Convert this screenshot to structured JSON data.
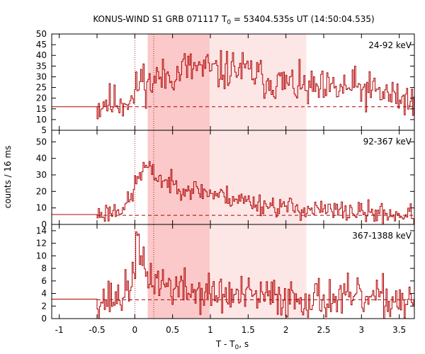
{
  "chart_data": {
    "type": "line",
    "title": "KONUS-WIND S1 GRB 071117 T",
    "title_sub": "0",
    "title_rest": " = 53404.535s UT (14:50:04.535)",
    "xlabel": "T - T",
    "xlabel_sub": "0",
    "xlabel_rest": ", s",
    "ylabel": "counts / 16 ms",
    "xlim": [
      -1.1,
      3.7
    ],
    "x_ticks": [
      -1,
      -0.5,
      0,
      0.5,
      1,
      1.5,
      2,
      2.5,
      3,
      3.5
    ],
    "x_tick_labels": [
      "-1",
      "-0.5",
      "0",
      "0.5",
      "1",
      "1.5",
      "2",
      "2.5",
      "3",
      "3.5"
    ],
    "line_color": "#b00000",
    "shade_light": "#fde6e6",
    "shade_dark": "#fbc9c9",
    "shaded_regions": [
      {
        "x0": 0.17,
        "x1": 2.27,
        "shade": "light"
      },
      {
        "x0": 0.17,
        "x1": 0.99,
        "shade": "dark"
      }
    ],
    "vertical_markers": [
      0,
      0.25
    ],
    "panels": [
      {
        "name": "24-92 keV",
        "ylim": [
          5,
          50
        ],
        "y_ticks": [
          5,
          10,
          15,
          20,
          25,
          30,
          35,
          40,
          45,
          50
        ],
        "background_level": 16,
        "pre_level": 16,
        "curve": [
          [
            -0.5,
            16
          ],
          [
            -0.45,
            17
          ],
          [
            -0.4,
            19
          ],
          [
            -0.35,
            18
          ],
          [
            -0.3,
            17
          ],
          [
            -0.25,
            19
          ],
          [
            -0.2,
            18
          ],
          [
            -0.15,
            19
          ],
          [
            -0.1,
            20
          ],
          [
            -0.05,
            18
          ],
          [
            0,
            22
          ],
          [
            0.05,
            28
          ],
          [
            0.1,
            30
          ],
          [
            0.15,
            27
          ],
          [
            0.2,
            26
          ],
          [
            0.25,
            29
          ],
          [
            0.3,
            30
          ],
          [
            0.35,
            29
          ],
          [
            0.4,
            30
          ],
          [
            0.45,
            31
          ],
          [
            0.5,
            32
          ],
          [
            0.55,
            30
          ],
          [
            0.6,
            33
          ],
          [
            0.65,
            35
          ],
          [
            0.7,
            34
          ],
          [
            0.75,
            33
          ],
          [
            0.8,
            35
          ],
          [
            0.85,
            34
          ],
          [
            0.9,
            33
          ],
          [
            0.95,
            34
          ],
          [
            1.0,
            33
          ],
          [
            1.1,
            32
          ],
          [
            1.2,
            33
          ],
          [
            1.3,
            34
          ],
          [
            1.4,
            33
          ],
          [
            1.5,
            32
          ],
          [
            1.6,
            31
          ],
          [
            1.7,
            29
          ],
          [
            1.8,
            28
          ],
          [
            1.9,
            27
          ],
          [
            2.0,
            27
          ],
          [
            2.1,
            26
          ],
          [
            2.2,
            25
          ],
          [
            2.3,
            24
          ],
          [
            2.4,
            24
          ],
          [
            2.5,
            23
          ],
          [
            2.6,
            24
          ],
          [
            2.7,
            24
          ],
          [
            2.8,
            25
          ],
          [
            2.9,
            25
          ],
          [
            3.0,
            24
          ],
          [
            3.1,
            23
          ],
          [
            3.2,
            23
          ],
          [
            3.3,
            22
          ],
          [
            3.4,
            21
          ],
          [
            3.5,
            20
          ],
          [
            3.6,
            19
          ],
          [
            3.7,
            19
          ]
        ],
        "noise": 4.5,
        "seed": 11
      },
      {
        "name": "92-367 keV",
        "ylim": [
          0,
          57
        ],
        "y_ticks": [
          0,
          10,
          20,
          30,
          40,
          50
        ],
        "background_level": 5.5,
        "pre_level": 6,
        "curve": [
          [
            -0.5,
            6
          ],
          [
            -0.4,
            7
          ],
          [
            -0.3,
            8
          ],
          [
            -0.2,
            10
          ],
          [
            -0.1,
            13
          ],
          [
            -0.05,
            16
          ],
          [
            0,
            25
          ],
          [
            0.05,
            30
          ],
          [
            0.1,
            33
          ],
          [
            0.15,
            35
          ],
          [
            0.2,
            32
          ],
          [
            0.25,
            30
          ],
          [
            0.3,
            29
          ],
          [
            0.35,
            27
          ],
          [
            0.4,
            26
          ],
          [
            0.5,
            24
          ],
          [
            0.6,
            23
          ],
          [
            0.7,
            22
          ],
          [
            0.8,
            21
          ],
          [
            0.9,
            20
          ],
          [
            1.0,
            19
          ],
          [
            1.1,
            18
          ],
          [
            1.2,
            17
          ],
          [
            1.3,
            16
          ],
          [
            1.4,
            15
          ],
          [
            1.5,
            14
          ],
          [
            1.6,
            13
          ],
          [
            1.7,
            12
          ],
          [
            1.8,
            11.5
          ],
          [
            1.9,
            11
          ],
          [
            2.0,
            10.5
          ],
          [
            2.1,
            10
          ],
          [
            2.2,
            9.5
          ],
          [
            2.3,
            9
          ],
          [
            2.5,
            8.5
          ],
          [
            2.7,
            8
          ],
          [
            2.9,
            7.5
          ],
          [
            3.1,
            7
          ],
          [
            3.3,
            6.5
          ],
          [
            3.5,
            6
          ],
          [
            3.7,
            6
          ]
        ],
        "noise": 3.2,
        "seed": 23
      },
      {
        "name": "367-1388 keV",
        "ylim": [
          0,
          15
        ],
        "y_ticks": [
          0,
          2,
          4,
          6,
          8,
          10,
          12,
          14
        ],
        "background_level": 3,
        "pre_level": 3.1,
        "curve": [
          [
            -0.5,
            3
          ],
          [
            -0.3,
            3.2
          ],
          [
            -0.2,
            3.5
          ],
          [
            -0.1,
            4.5
          ],
          [
            -0.05,
            6
          ],
          [
            0,
            10
          ],
          [
            0.02,
            13
          ],
          [
            0.05,
            10
          ],
          [
            0.1,
            8
          ],
          [
            0.15,
            7
          ],
          [
            0.2,
            6.5
          ],
          [
            0.3,
            6
          ],
          [
            0.4,
            5.5
          ],
          [
            0.5,
            5
          ],
          [
            0.7,
            4.5
          ],
          [
            0.9,
            4
          ],
          [
            1.1,
            3.8
          ],
          [
            1.3,
            3.6
          ],
          [
            1.5,
            3.5
          ],
          [
            1.8,
            3.4
          ],
          [
            2.1,
            3.3
          ],
          [
            2.5,
            3.2
          ],
          [
            3.0,
            3.1
          ],
          [
            3.7,
            3
          ]
        ],
        "noise": 1.6,
        "seed": 37
      }
    ]
  }
}
